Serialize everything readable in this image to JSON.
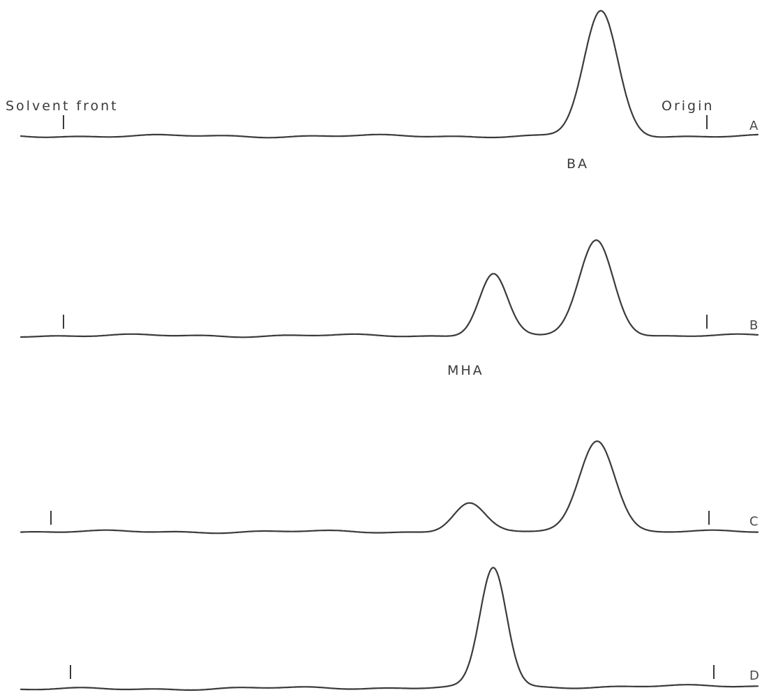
{
  "chart_data": {
    "type": "line",
    "title": "",
    "xlabel": "",
    "ylabel": "",
    "x_axis": {
      "left_label": "Solvent front",
      "right_label": "Origin",
      "range": [
        0,
        1
      ],
      "grid": false
    },
    "y_range": [
      0,
      1
    ],
    "peak_labels": [
      {
        "text": "BA",
        "trace": "A"
      },
      {
        "text": "MHA",
        "trace": "B"
      }
    ],
    "series": [
      {
        "name": "A",
        "peaks": [
          {
            "center": 0.787,
            "height": 1.0,
            "width": 0.023
          }
        ]
      },
      {
        "name": "B",
        "peaks": [
          {
            "center": 0.641,
            "height": 0.59,
            "width": 0.019
          },
          {
            "center": 0.781,
            "height": 0.91,
            "width": 0.023
          }
        ]
      },
      {
        "name": "C",
        "peaks": [
          {
            "center": 0.608,
            "height": 0.28,
            "width": 0.021
          },
          {
            "center": 0.782,
            "height": 0.91,
            "width": 0.024
          }
        ]
      },
      {
        "name": "D",
        "peaks": [
          {
            "center": 0.641,
            "height": 1.0,
            "width": 0.018
          }
        ]
      }
    ]
  }
}
